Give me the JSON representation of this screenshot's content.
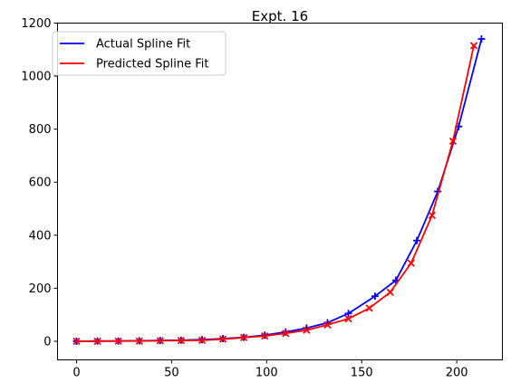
{
  "chart_data": {
    "type": "line",
    "title": "Expt. 16",
    "xlabel": "",
    "ylabel": "",
    "xlim": [
      -10,
      224
    ],
    "ylim": [
      -70,
      1200
    ],
    "xticks": [
      0,
      50,
      100,
      150,
      200
    ],
    "yticks": [
      0,
      200,
      400,
      600,
      800,
      1000,
      1200
    ],
    "grid": false,
    "legend_position": "upper-left",
    "series": [
      {
        "name": "Actual Spline Fit",
        "color": "#0000ff",
        "marker": "plus",
        "x": [
          0,
          11,
          22,
          33,
          44,
          55,
          66,
          77,
          88,
          99,
          110,
          121,
          132,
          143,
          157,
          168,
          179,
          190,
          201,
          213
        ],
        "y": [
          0,
          1,
          1,
          2,
          3,
          4,
          6,
          10,
          15,
          23,
          35,
          50,
          70,
          105,
          170,
          230,
          380,
          565,
          810,
          1140
        ]
      },
      {
        "name": "Predicted Spline Fit",
        "color": "#ff0000",
        "marker": "x",
        "x": [
          0,
          11,
          22,
          33,
          44,
          55,
          66,
          77,
          88,
          99,
          110,
          121,
          132,
          143,
          154,
          165,
          176,
          187,
          198,
          209
        ],
        "y": [
          0,
          0,
          1,
          1,
          2,
          3,
          4,
          8,
          14,
          20,
          30,
          42,
          62,
          85,
          125,
          185,
          295,
          475,
          755,
          1115
        ]
      }
    ]
  }
}
